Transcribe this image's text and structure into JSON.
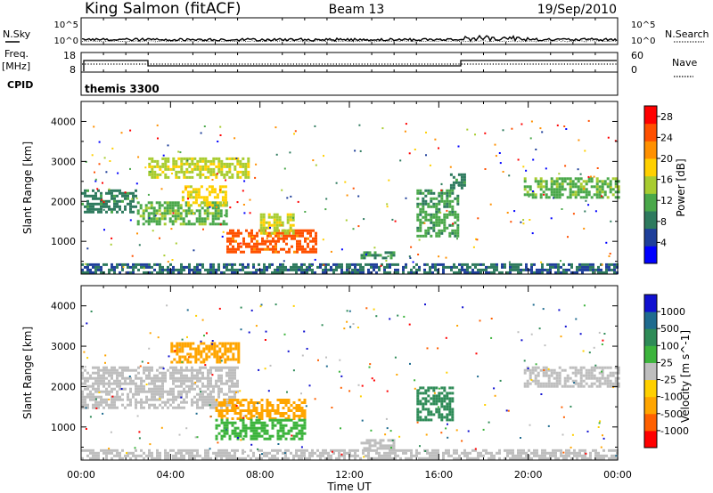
{
  "header": {
    "station": "King Salmon (fitACF)",
    "beam": "Beam 13",
    "date": "19/Sep/2010"
  },
  "summary": {
    "nsky_label": "N.Sky",
    "nsearch_label": "N.Search",
    "freq_label_line1": "Freq.",
    "freq_label_line2": "[MHz]",
    "nave_label": "Nave",
    "cpid_label": "CPID",
    "cpid_value": "themis 3300",
    "noise_ticks": [
      "10^5",
      "10^0"
    ],
    "freq_ticks": [
      "18",
      "8"
    ],
    "nave_ticks": [
      "60",
      "0"
    ]
  },
  "time_axis": {
    "label": "Time UT",
    "ticks": [
      "00:00",
      "04:00",
      "08:00",
      "12:00",
      "16:00",
      "20:00",
      "00:00"
    ]
  },
  "colors": {
    "power": [
      "#0000ff",
      "#1f3f9a",
      "#2e7a5e",
      "#4aa84a",
      "#a8cc30",
      "#ffd000",
      "#ff9000",
      "#ff5000",
      "#ff0000"
    ],
    "velocity": [
      "#ff0000",
      "#ff6000",
      "#ffa500",
      "#ffd000",
      "#bebebe",
      "#3cb43c",
      "#2e8b57",
      "#1f6b8f",
      "#1010d0"
    ]
  },
  "chart_data": [
    {
      "type": "heatmap",
      "title": "",
      "xlabel": "",
      "ylabel": "Slant Range [km]",
      "xlim": [
        0,
        24
      ],
      "ylim": [
        180,
        4500
      ],
      "yticks": [
        "1000",
        "2000",
        "3000",
        "4000"
      ],
      "colorbar": {
        "label": "Power [dB]",
        "ticks": [
          "4",
          "8",
          "12",
          "16",
          "20",
          "24",
          "28"
        ],
        "range": [
          0,
          30
        ]
      },
      "regions": [
        {
          "t": [
            0.0,
            2.5
          ],
          "r": [
            1700,
            2300
          ],
          "value": 8
        },
        {
          "t": [
            2.5,
            6.5
          ],
          "r": [
            1400,
            2000
          ],
          "value": 12
        },
        {
          "t": [
            3.0,
            7.5
          ],
          "r": [
            2600,
            3100
          ],
          "value": 16
        },
        {
          "t": [
            4.5,
            6.5
          ],
          "r": [
            1900,
            2400
          ],
          "value": 18
        },
        {
          "t": [
            6.5,
            10.5
          ],
          "r": [
            700,
            1300
          ],
          "value": 26
        },
        {
          "t": [
            8.0,
            9.5
          ],
          "r": [
            1200,
            1700
          ],
          "value": 16
        },
        {
          "t": [
            15.0,
            16.8
          ],
          "r": [
            1100,
            2300
          ],
          "value": 10
        },
        {
          "t": [
            16.5,
            17.2
          ],
          "r": [
            2300,
            2700
          ],
          "value": 8
        },
        {
          "t": [
            19.8,
            24.0
          ],
          "r": [
            2100,
            2600
          ],
          "value": 12
        },
        {
          "t": [
            0.0,
            24.0
          ],
          "r": [
            200,
            450
          ],
          "value": 6
        },
        {
          "t": [
            12.5,
            14.0
          ],
          "r": [
            600,
            750
          ],
          "value": 9
        }
      ]
    },
    {
      "type": "heatmap",
      "title": "",
      "xlabel": "Time UT",
      "ylabel": "Slant Range [km]",
      "xlim": [
        0,
        24
      ],
      "ylim": [
        180,
        4500
      ],
      "yticks": [
        "1000",
        "2000",
        "3000",
        "4000"
      ],
      "colorbar": {
        "label": "Velocity [m s^-1]",
        "ticks": [
          "1000",
          "500",
          "100",
          "25",
          "-25",
          "-100",
          "-500",
          "-1000"
        ]
      },
      "regions": [
        {
          "t": [
            0.0,
            7.0
          ],
          "r": [
            1500,
            2500
          ],
          "value": 0
        },
        {
          "t": [
            4.0,
            7.0
          ],
          "r": [
            2600,
            3100
          ],
          "value": -300
        },
        {
          "t": [
            6.0,
            10.0
          ],
          "r": [
            1200,
            1700
          ],
          "value": -150
        },
        {
          "t": [
            6.0,
            10.0
          ],
          "r": [
            700,
            1200
          ],
          "value": 60
        },
        {
          "t": [
            15.0,
            16.6
          ],
          "r": [
            1200,
            2000
          ],
          "value": 300
        },
        {
          "t": [
            19.8,
            24.0
          ],
          "r": [
            2000,
            2500
          ],
          "value": 0
        },
        {
          "t": [
            0.0,
            24.0
          ],
          "r": [
            200,
            450
          ],
          "value": 0
        },
        {
          "t": [
            12.5,
            14.0
          ],
          "r": [
            500,
            700
          ],
          "value": 0
        }
      ]
    }
  ]
}
